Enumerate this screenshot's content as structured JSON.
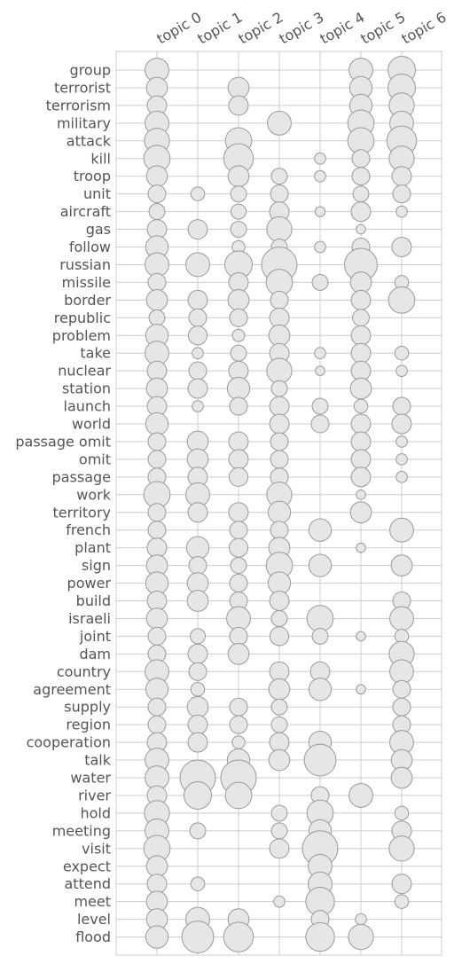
{
  "chart_data": {
    "type": "scatter",
    "x_categories": [
      "topic 0",
      "topic 1",
      "topic 2",
      "topic 3",
      "topic 4",
      "topic 5",
      "topic 6"
    ],
    "y_categories": [
      "group",
      "terrorist",
      "terrorism",
      "military",
      "attack",
      "kill",
      "troop",
      "unit",
      "aircraft",
      "gas",
      "follow",
      "russian",
      "missile",
      "border",
      "republic",
      "problem",
      "take",
      "nuclear",
      "station",
      "launch",
      "world",
      "passage omit",
      "omit",
      "passage",
      "work",
      "territory",
      "french",
      "plant",
      "sign",
      "power",
      "build",
      "israeli",
      "joint",
      "dam",
      "country",
      "agreement",
      "supply",
      "region",
      "cooperation",
      "talk",
      "water",
      "river",
      "hold",
      "meeting",
      "visit",
      "expect",
      "attend",
      "meet",
      "level",
      "flood"
    ],
    "size_matrix": [
      [
        0.45,
        0,
        0,
        0,
        0,
        0.45,
        0.6
      ],
      [
        0.35,
        0,
        0.35,
        0,
        0,
        0.4,
        0.6
      ],
      [
        0.3,
        0,
        0.3,
        0,
        0,
        0.4,
        0.5
      ],
      [
        0.45,
        0,
        0,
        0.45,
        0,
        0.55,
        0.45
      ],
      [
        0.5,
        0,
        0.55,
        0,
        0,
        0.55,
        0.7
      ],
      [
        0.55,
        0,
        0.7,
        0,
        0.1,
        0.25,
        0.5
      ],
      [
        0.35,
        0,
        0.35,
        0.2,
        0.1,
        0.25,
        0.3
      ],
      [
        0.25,
        0.15,
        0.2,
        0.25,
        0,
        0.2,
        0.25
      ],
      [
        0.2,
        0,
        0.18,
        0.3,
        0.08,
        0.3,
        0.1
      ],
      [
        0.3,
        0.3,
        0.2,
        0.5,
        0,
        0.07,
        0
      ],
      [
        0.4,
        0,
        0.13,
        0.2,
        0.1,
        0.25,
        0.3
      ],
      [
        0.45,
        0.45,
        0.6,
        1.0,
        0,
        0.85,
        0
      ],
      [
        0.25,
        0,
        0.3,
        0.55,
        0.2,
        0.35,
        0.15
      ],
      [
        0.35,
        0.3,
        0.35,
        0.25,
        0,
        0.3,
        0.55
      ],
      [
        0.2,
        0.25,
        0.25,
        0.3,
        0,
        0.22,
        0
      ],
      [
        0.4,
        0.28,
        0.12,
        0.35,
        0,
        0.3,
        0
      ],
      [
        0.45,
        0.1,
        0.2,
        0.3,
        0.1,
        0.3,
        0.15
      ],
      [
        0.3,
        0.25,
        0.3,
        0.5,
        0.07,
        0.3,
        0.1
      ],
      [
        0.35,
        0.3,
        0.4,
        0.2,
        0,
        0.35,
        0
      ],
      [
        0.3,
        0.1,
        0.25,
        0.3,
        0.2,
        0.15,
        0.25
      ],
      [
        0.4,
        0,
        0,
        0.3,
        0.25,
        0.3,
        0.3
      ],
      [
        0.25,
        0.35,
        0.3,
        0.25,
        0,
        0.3,
        0.1
      ],
      [
        0.25,
        0.35,
        0.3,
        0.25,
        0,
        0.3,
        0.1
      ],
      [
        0.25,
        0.3,
        0.28,
        0.25,
        0,
        0.3,
        0.1
      ],
      [
        0.55,
        0.45,
        0,
        0.5,
        0,
        0.07,
        0
      ],
      [
        0.25,
        0.3,
        0.3,
        0.4,
        0,
        0.35,
        0
      ],
      [
        0.25,
        0,
        0.25,
        0.25,
        0.4,
        0,
        0.45
      ],
      [
        0.3,
        0.4,
        0.28,
        0.35,
        0,
        0.07,
        0
      ],
      [
        0.35,
        0.25,
        0.2,
        0.55,
        0.4,
        0,
        0.35
      ],
      [
        0.4,
        0.35,
        0.25,
        0.4,
        0,
        0,
        0
      ],
      [
        0.3,
        0.35,
        0.25,
        0.3,
        0,
        0,
        0.25
      ],
      [
        0.35,
        0,
        0.45,
        0.2,
        0.55,
        0,
        0.45
      ],
      [
        0.25,
        0.18,
        0.25,
        0.28,
        0.2,
        0.07,
        0.15
      ],
      [
        0.25,
        0.3,
        0.35,
        0,
        0,
        0,
        0.5
      ],
      [
        0.45,
        0.25,
        0,
        0.3,
        0.3,
        0,
        0.45
      ],
      [
        0.4,
        0.15,
        0,
        0.35,
        0.4,
        0.07,
        0.25
      ],
      [
        0.25,
        0.35,
        0.25,
        0.2,
        0,
        0,
        0.25
      ],
      [
        0.25,
        0.3,
        0.25,
        0.2,
        0,
        0,
        0.25
      ],
      [
        0.3,
        0.3,
        0.13,
        0.3,
        0.4,
        0,
        0.45
      ],
      [
        0.45,
        0,
        0.4,
        0.35,
        0.8,
        0,
        0.35
      ],
      [
        0.45,
        1.0,
        1.0,
        0,
        0,
        0,
        0.35
      ],
      [
        0.3,
        0.6,
        0.55,
        0,
        0.25,
        0.45,
        0
      ],
      [
        0.5,
        0,
        0,
        0.2,
        0.55,
        0,
        0.15
      ],
      [
        0.45,
        0.2,
        0,
        0.2,
        0.4,
        0,
        0.3
      ],
      [
        0.55,
        0,
        0,
        0.3,
        1.0,
        0,
        0.5
      ],
      [
        0.35,
        0,
        0,
        0,
        0.45,
        0,
        0
      ],
      [
        0.3,
        0.15,
        0,
        0,
        0.45,
        0,
        0.3
      ],
      [
        0.35,
        0,
        0,
        0.1,
        0.65,
        0,
        0.15
      ],
      [
        0.35,
        0.45,
        0.35,
        0,
        0.25,
        0.1,
        0
      ],
      [
        0.4,
        0.8,
        0.7,
        0,
        0.65,
        0.5,
        0
      ]
    ],
    "marker_fill": "#e6e6e6",
    "marker_edge": "#9a9a9a",
    "grid": true,
    "legend": "none"
  }
}
